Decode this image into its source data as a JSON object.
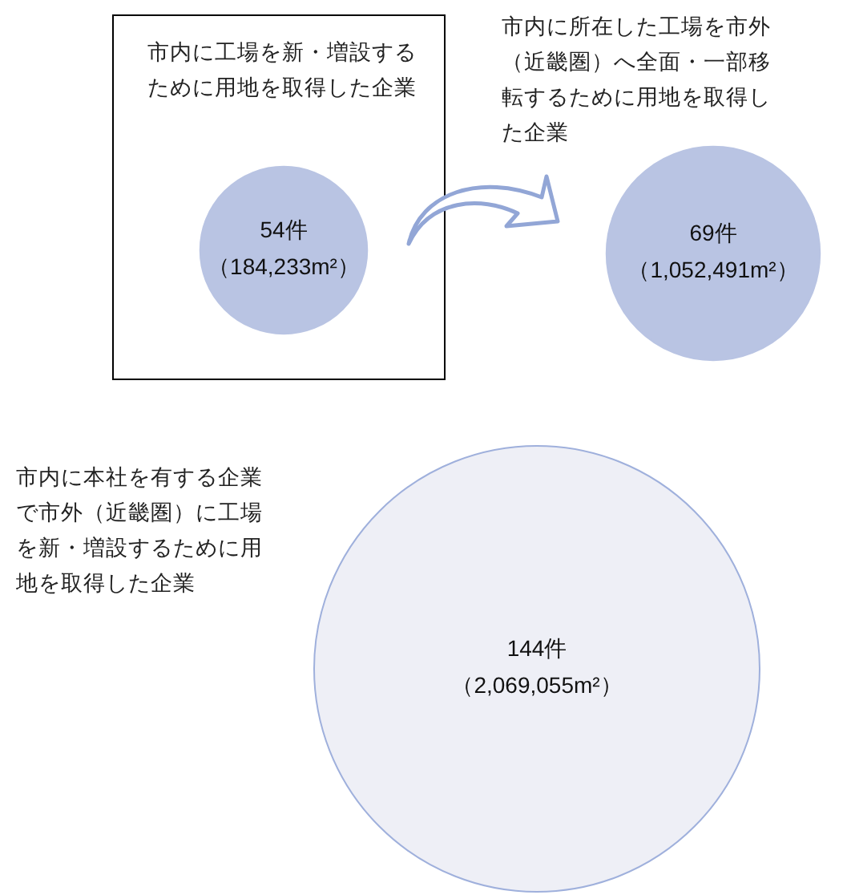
{
  "chart_data": {
    "type": "other",
    "categories": [
      "市内に工場を新・増設するために用地を取得した企業",
      "市内に所在した工場を市外（近畿圏）へ全面・一部移転するために用地を取得した企業",
      "市内に本社を有する企業で市外（近畿圏）に工場を新・増設するために用地を取得した企業"
    ],
    "series": [
      {
        "colors": [
          "#b9c4e3",
          "#b9c4e3",
          "#eeeff6"
        ],
        "values": [
          54,
          69,
          144
        ],
        "value_labels": [
          "54件",
          "69件",
          "144件"
        ]
      }
    ],
    "annotations": [
      "（184,233m²）",
      "（1,052,491m²）",
      "（2,069,055m²）"
    ]
  }
}
